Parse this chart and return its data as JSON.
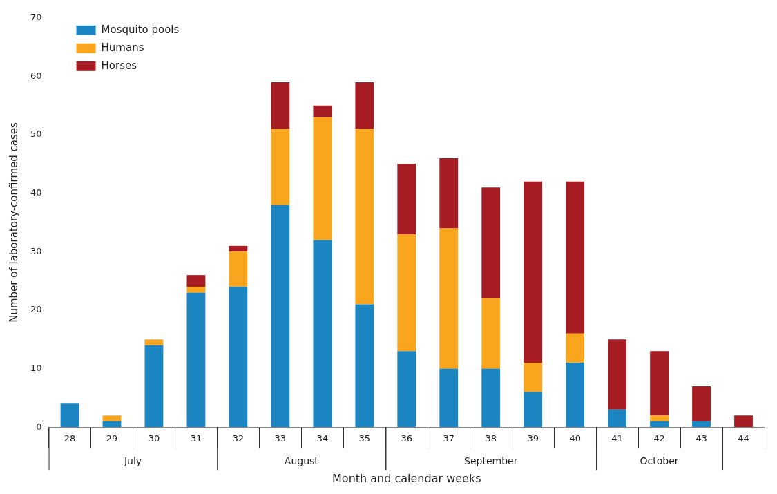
{
  "chart_data": {
    "type": "bar",
    "stacked": true,
    "ylabel": "Number of laboratory-confirmed cases",
    "xlabel": "Month and calendar weeks",
    "categories": [
      "28",
      "29",
      "30",
      "31",
      "32",
      "33",
      "34",
      "35",
      "36",
      "37",
      "38",
      "39",
      "40",
      "41",
      "42",
      "43",
      "44"
    ],
    "series": [
      {
        "name": "Mosquito pools",
        "color": "#1a85c0",
        "values": [
          4,
          1,
          14,
          23,
          24,
          38,
          32,
          21,
          13,
          10,
          10,
          6,
          11,
          3,
          1,
          1,
          0
        ]
      },
      {
        "name": "Humans",
        "color": "#f9a61e",
        "values": [
          0,
          1,
          1,
          1,
          6,
          13,
          21,
          30,
          20,
          24,
          12,
          5,
          5,
          0,
          1,
          0,
          0
        ]
      },
      {
        "name": "Horses",
        "color": "#a61c22",
        "values": [
          0,
          0,
          0,
          2,
          1,
          8,
          2,
          8,
          12,
          12,
          19,
          31,
          26,
          12,
          11,
          6,
          2
        ]
      }
    ],
    "ylim": [
      0,
      70
    ],
    "yticks": [
      0,
      10,
      20,
      30,
      40,
      50,
      60,
      70
    ],
    "grid": false,
    "legend": "top left",
    "annotations": [
      "July",
      "August",
      "September",
      "October"
    ]
  }
}
